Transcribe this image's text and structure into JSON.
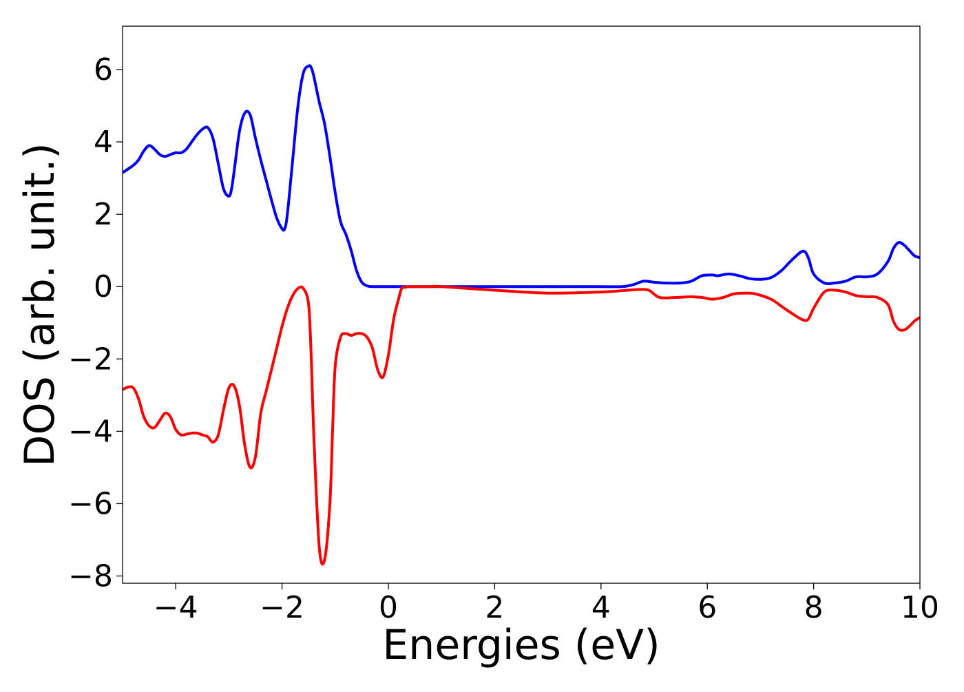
{
  "chart_data": {
    "type": "line",
    "title": "",
    "xlabel": "Energies (eV)",
    "ylabel": "DOS (arb. unit.)",
    "xlim": [
      -5,
      10
    ],
    "ylim": [
      -8.2,
      7.2
    ],
    "xticks": [
      -4,
      -2,
      0,
      2,
      4,
      6,
      8,
      10
    ],
    "xtick_labels": [
      "−4",
      "−2",
      "0",
      "2",
      "4",
      "6",
      "8",
      "10"
    ],
    "yticks": [
      -8,
      -6,
      -4,
      -2,
      0,
      2,
      4,
      6
    ],
    "ytick_labels": [
      "−8",
      "−6",
      "−4",
      "−2",
      "0",
      "2",
      "4",
      "6"
    ],
    "grid": false,
    "legend": "none",
    "series": [
      {
        "color": "#0000ff",
        "x": [
          -5.0,
          -4.8,
          -4.7,
          -4.6,
          -4.5,
          -4.4,
          -4.3,
          -4.2,
          -4.1,
          -4.0,
          -3.9,
          -3.8,
          -3.7,
          -3.6,
          -3.5,
          -3.4,
          -3.3,
          -3.2,
          -3.1,
          -3.0,
          -2.95,
          -2.9,
          -2.8,
          -2.7,
          -2.6,
          -2.5,
          -2.4,
          -2.3,
          -2.2,
          -2.1,
          -2.0,
          -1.95,
          -1.9,
          -1.8,
          -1.7,
          -1.6,
          -1.5,
          -1.45,
          -1.4,
          -1.3,
          -1.2,
          -1.1,
          -1.0,
          -0.9,
          -0.8,
          -0.7,
          -0.6,
          -0.5,
          -0.4,
          -0.3,
          -0.2,
          0.0,
          1.0,
          2.0,
          3.0,
          4.0,
          4.4,
          4.6,
          4.8,
          5.0,
          5.2,
          5.5,
          5.7,
          5.9,
          6.1,
          6.2,
          6.4,
          6.6,
          6.8,
          7.0,
          7.2,
          7.4,
          7.6,
          7.8,
          7.9,
          8.0,
          8.2,
          8.4,
          8.6,
          8.8,
          9.0,
          9.2,
          9.4,
          9.5,
          9.6,
          9.7,
          9.8,
          9.9,
          10.0
        ],
        "y": [
          3.15,
          3.35,
          3.5,
          3.75,
          3.9,
          3.8,
          3.65,
          3.6,
          3.65,
          3.7,
          3.7,
          3.8,
          4.0,
          4.2,
          4.35,
          4.4,
          4.1,
          3.4,
          2.7,
          2.5,
          2.7,
          3.2,
          4.3,
          4.8,
          4.75,
          4.1,
          3.5,
          2.95,
          2.4,
          1.9,
          1.6,
          1.6,
          2.0,
          3.5,
          5.0,
          5.9,
          6.1,
          6.05,
          5.8,
          5.1,
          4.5,
          3.6,
          2.6,
          1.8,
          1.45,
          1.0,
          0.45,
          0.12,
          0.02,
          0.0,
          0.0,
          0.0,
          0.0,
          0.0,
          0.0,
          0.0,
          0.0,
          0.05,
          0.15,
          0.12,
          0.1,
          0.1,
          0.15,
          0.3,
          0.32,
          0.3,
          0.35,
          0.3,
          0.22,
          0.2,
          0.25,
          0.45,
          0.75,
          0.98,
          0.8,
          0.35,
          0.1,
          0.1,
          0.15,
          0.27,
          0.27,
          0.35,
          0.7,
          1.05,
          1.22,
          1.15,
          1.0,
          0.85,
          0.8
        ]
      },
      {
        "color": "#ff0000",
        "x": [
          -5.0,
          -4.9,
          -4.8,
          -4.7,
          -4.6,
          -4.5,
          -4.4,
          -4.3,
          -4.2,
          -4.1,
          -4.0,
          -3.9,
          -3.8,
          -3.7,
          -3.6,
          -3.5,
          -3.4,
          -3.3,
          -3.2,
          -3.1,
          -3.0,
          -2.9,
          -2.8,
          -2.7,
          -2.6,
          -2.5,
          -2.4,
          -2.3,
          -2.2,
          -2.1,
          -2.0,
          -1.9,
          -1.8,
          -1.7,
          -1.6,
          -1.5,
          -1.45,
          -1.4,
          -1.3,
          -1.2,
          -1.1,
          -1.05,
          -1.0,
          -0.9,
          -0.8,
          -0.7,
          -0.6,
          -0.5,
          -0.4,
          -0.3,
          -0.2,
          -0.1,
          0.0,
          0.1,
          0.2,
          0.25,
          0.3,
          0.4,
          0.5,
          0.6,
          0.7,
          0.8,
          1.0,
          2.0,
          3.0,
          4.0,
          4.5,
          4.7,
          4.9,
          5.1,
          5.4,
          5.7,
          5.9,
          6.1,
          6.3,
          6.5,
          6.7,
          6.9,
          7.2,
          7.4,
          7.6,
          7.8,
          7.9,
          8.0,
          8.2,
          8.4,
          8.6,
          8.8,
          9.0,
          9.2,
          9.4,
          9.5,
          9.6,
          9.7,
          9.8,
          9.9,
          10.0
        ],
        "y": [
          -2.85,
          -2.78,
          -2.8,
          -3.1,
          -3.6,
          -3.85,
          -3.9,
          -3.7,
          -3.5,
          -3.6,
          -3.95,
          -4.1,
          -4.08,
          -4.05,
          -4.05,
          -4.1,
          -4.15,
          -4.3,
          -4.1,
          -3.4,
          -2.8,
          -2.75,
          -3.3,
          -4.4,
          -5.0,
          -4.7,
          -3.5,
          -2.9,
          -2.3,
          -1.7,
          -1.1,
          -0.6,
          -0.25,
          -0.05,
          -0.05,
          -0.5,
          -2.0,
          -4.2,
          -7.2,
          -7.55,
          -6.0,
          -4.0,
          -2.2,
          -1.4,
          -1.3,
          -1.35,
          -1.3,
          -1.3,
          -1.4,
          -1.7,
          -2.3,
          -2.5,
          -1.9,
          -0.9,
          -0.3,
          -0.05,
          -0.02,
          0.0,
          0.0,
          0.0,
          0.0,
          0.0,
          0.0,
          -0.1,
          -0.18,
          -0.15,
          -0.1,
          -0.08,
          -0.1,
          -0.3,
          -0.3,
          -0.28,
          -0.3,
          -0.35,
          -0.3,
          -0.2,
          -0.18,
          -0.2,
          -0.35,
          -0.55,
          -0.75,
          -0.92,
          -0.9,
          -0.6,
          -0.15,
          -0.1,
          -0.15,
          -0.25,
          -0.28,
          -0.3,
          -0.5,
          -0.95,
          -1.18,
          -1.2,
          -1.1,
          -0.95,
          -0.85
        ]
      }
    ]
  }
}
